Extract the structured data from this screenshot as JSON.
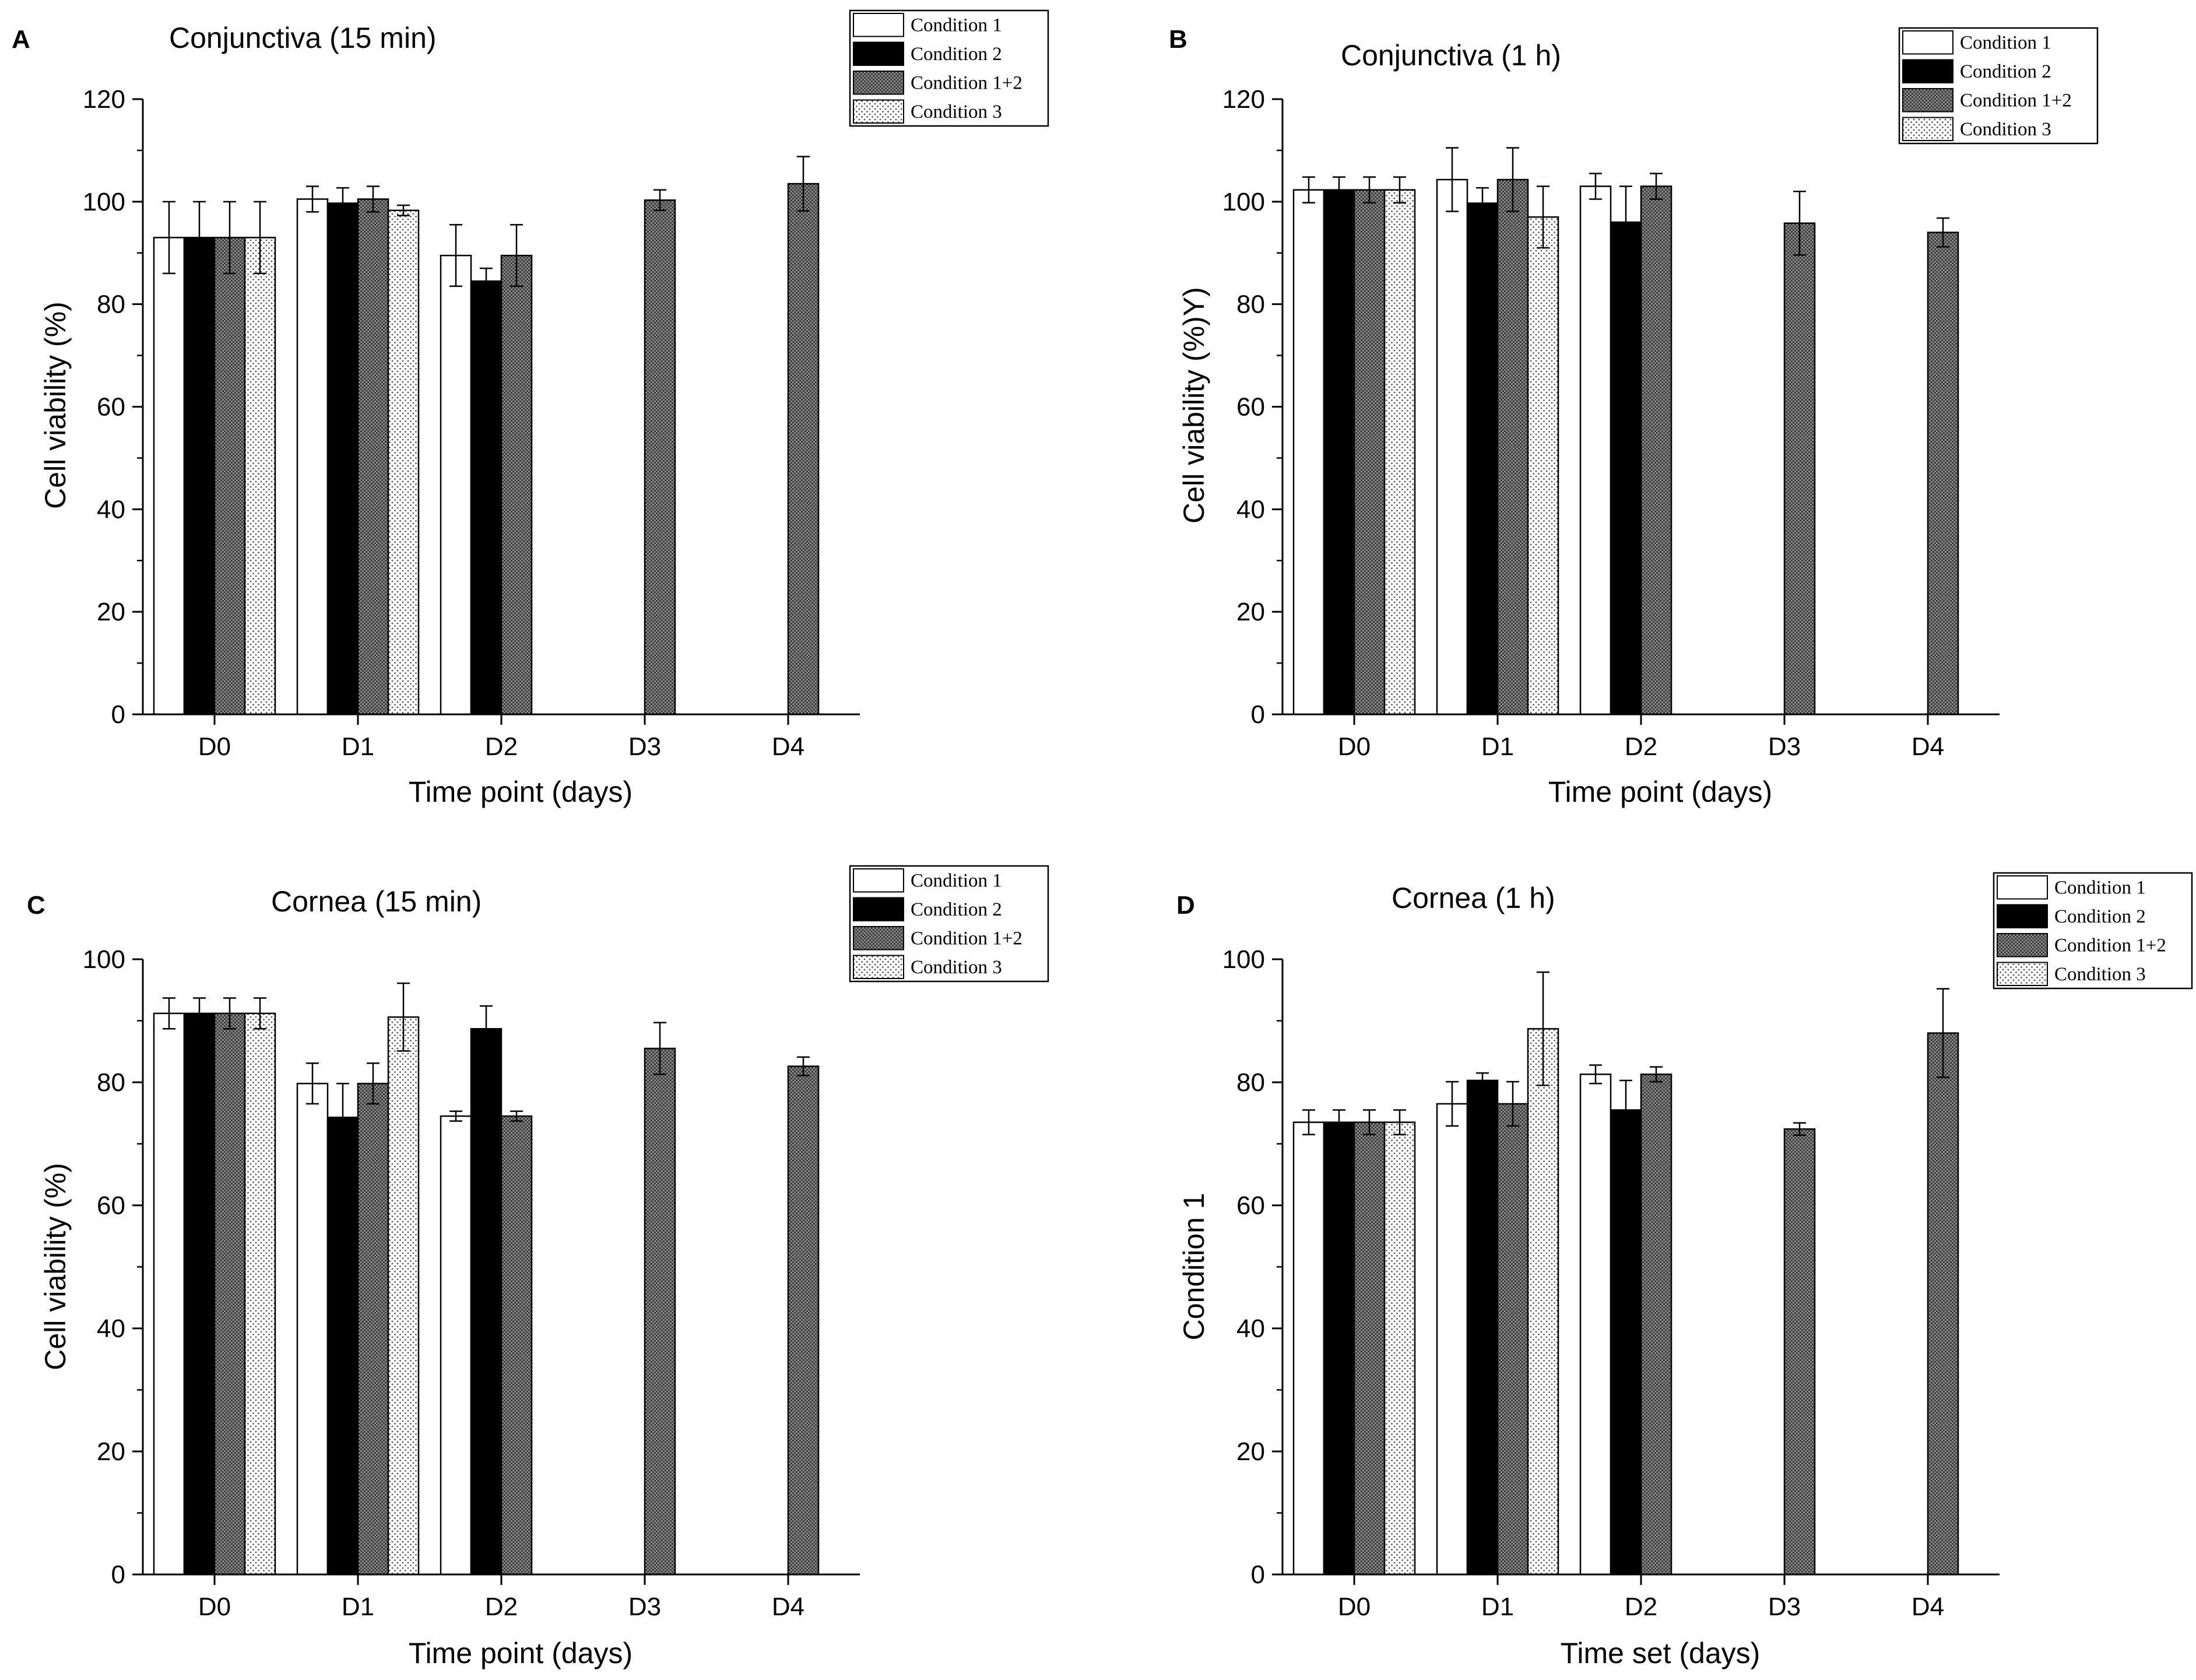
{
  "chart_data": [
    {
      "type": "bar",
      "panel_label": "A",
      "title": "Conjunctiva (15 min)",
      "xlabel": "Time point (days)",
      "ylabel": "Cell viability (%)",
      "categories": [
        "D0",
        "D1",
        "D2",
        "D3",
        "D4"
      ],
      "ylim": [
        0,
        120
      ],
      "yticks": [
        0,
        20,
        40,
        60,
        80,
        100,
        120
      ],
      "legend_position": "top-right",
      "series": [
        {
          "name": "Condition 1",
          "pattern": "white",
          "values": [
            93,
            100.5,
            89.5,
            null,
            null
          ],
          "errors": [
            7,
            2.5,
            6,
            null,
            null
          ]
        },
        {
          "name": "Condition 2",
          "pattern": "black",
          "values": [
            93,
            99.7,
            84.5,
            null,
            null
          ],
          "errors": [
            7,
            3,
            2.5,
            null,
            null
          ]
        },
        {
          "name": "Condition 1+2",
          "pattern": "grey",
          "values": [
            93,
            100.5,
            89.5,
            100.3,
            103.5
          ],
          "errors": [
            7,
            2.5,
            6,
            2,
            5.3
          ]
        },
        {
          "name": "Condition 3",
          "pattern": "dots",
          "values": [
            93,
            98.3,
            null,
            null,
            null
          ],
          "errors": [
            7,
            1,
            null,
            null,
            null
          ]
        }
      ]
    },
    {
      "type": "bar",
      "panel_label": "B",
      "title": "Conjunctiva (1 h)",
      "xlabel": "Time point (days)",
      "ylabel": "Cell viability (%)Y)",
      "categories": [
        "D0",
        "D1",
        "D2",
        "D3",
        "D4"
      ],
      "ylim": [
        0,
        120
      ],
      "yticks": [
        0,
        20,
        40,
        60,
        80,
        100,
        120
      ],
      "legend_position": "top-right",
      "series": [
        {
          "name": "Condition 1",
          "pattern": "white",
          "values": [
            102.3,
            104.3,
            103,
            null,
            null
          ],
          "errors": [
            2.5,
            6.2,
            2.5,
            null,
            null
          ]
        },
        {
          "name": "Condition 2",
          "pattern": "black",
          "values": [
            102.3,
            99.7,
            96,
            null,
            null
          ],
          "errors": [
            2.5,
            3,
            7,
            null,
            null
          ]
        },
        {
          "name": "Condition 1+2",
          "pattern": "grey",
          "values": [
            102.3,
            104.3,
            103,
            95.8,
            94
          ],
          "errors": [
            2.5,
            6.2,
            2.5,
            6.2,
            2.8
          ]
        },
        {
          "name": "Condition 3",
          "pattern": "dots",
          "values": [
            102.3,
            97,
            null,
            null,
            null
          ],
          "errors": [
            2.5,
            6,
            null,
            null,
            null
          ]
        }
      ]
    },
    {
      "type": "bar",
      "panel_label": "C",
      "title": "Cornea (15 min)",
      "xlabel": "Time point (days)",
      "ylabel": "Cell viability (%)",
      "categories": [
        "D0",
        "D1",
        "D2",
        "D3",
        "D4"
      ],
      "ylim": [
        0,
        100
      ],
      "yticks": [
        0,
        20,
        40,
        60,
        80,
        100
      ],
      "legend_position": "top-right",
      "series": [
        {
          "name": "Condition 1",
          "pattern": "white",
          "values": [
            91.2,
            79.8,
            74.5,
            null,
            null
          ],
          "errors": [
            2.5,
            3.3,
            0.8,
            null,
            null
          ]
        },
        {
          "name": "Condition 2",
          "pattern": "black",
          "values": [
            91.2,
            74.3,
            88.7,
            null,
            null
          ],
          "errors": [
            2.5,
            5.5,
            3.7,
            null,
            null
          ]
        },
        {
          "name": "Condition 1+2",
          "pattern": "grey",
          "values": [
            91.2,
            79.8,
            74.5,
            85.5,
            82.6
          ],
          "errors": [
            2.5,
            3.3,
            0.8,
            4.2,
            1.5
          ]
        },
        {
          "name": "Condition 3",
          "pattern": "dots",
          "values": [
            91.2,
            90.6,
            null,
            null,
            null
          ],
          "errors": [
            2.5,
            5.5,
            null,
            null,
            null
          ]
        }
      ]
    },
    {
      "type": "bar",
      "panel_label": "D",
      "title": "Cornea (1 h)",
      "xlabel": "Time set (days)",
      "ylabel": "Condition 1",
      "categories": [
        "D0",
        "D1",
        "D2",
        "D3",
        "D4"
      ],
      "ylim": [
        0,
        100
      ],
      "yticks": [
        0,
        20,
        40,
        60,
        80,
        100
      ],
      "legend_position": "top-right",
      "series": [
        {
          "name": "Condition 1",
          "pattern": "white",
          "values": [
            73.5,
            76.5,
            81.3,
            null,
            null
          ],
          "errors": [
            2,
            3.6,
            1.5,
            null,
            null
          ]
        },
        {
          "name": "Condition 2",
          "pattern": "black",
          "values": [
            73.5,
            80.3,
            75.5,
            null,
            null
          ],
          "errors": [
            2,
            1.2,
            4.8,
            null,
            null
          ]
        },
        {
          "name": "Condition 1+2",
          "pattern": "grey",
          "values": [
            73.5,
            76.5,
            81.3,
            72.4,
            88
          ],
          "errors": [
            2,
            3.6,
            1.2,
            1,
            7.2
          ]
        },
        {
          "name": "Condition 3",
          "pattern": "dots",
          "values": [
            73.5,
            88.7,
            null,
            null,
            null
          ],
          "errors": [
            2,
            9.2,
            null,
            null,
            null
          ]
        }
      ]
    }
  ]
}
